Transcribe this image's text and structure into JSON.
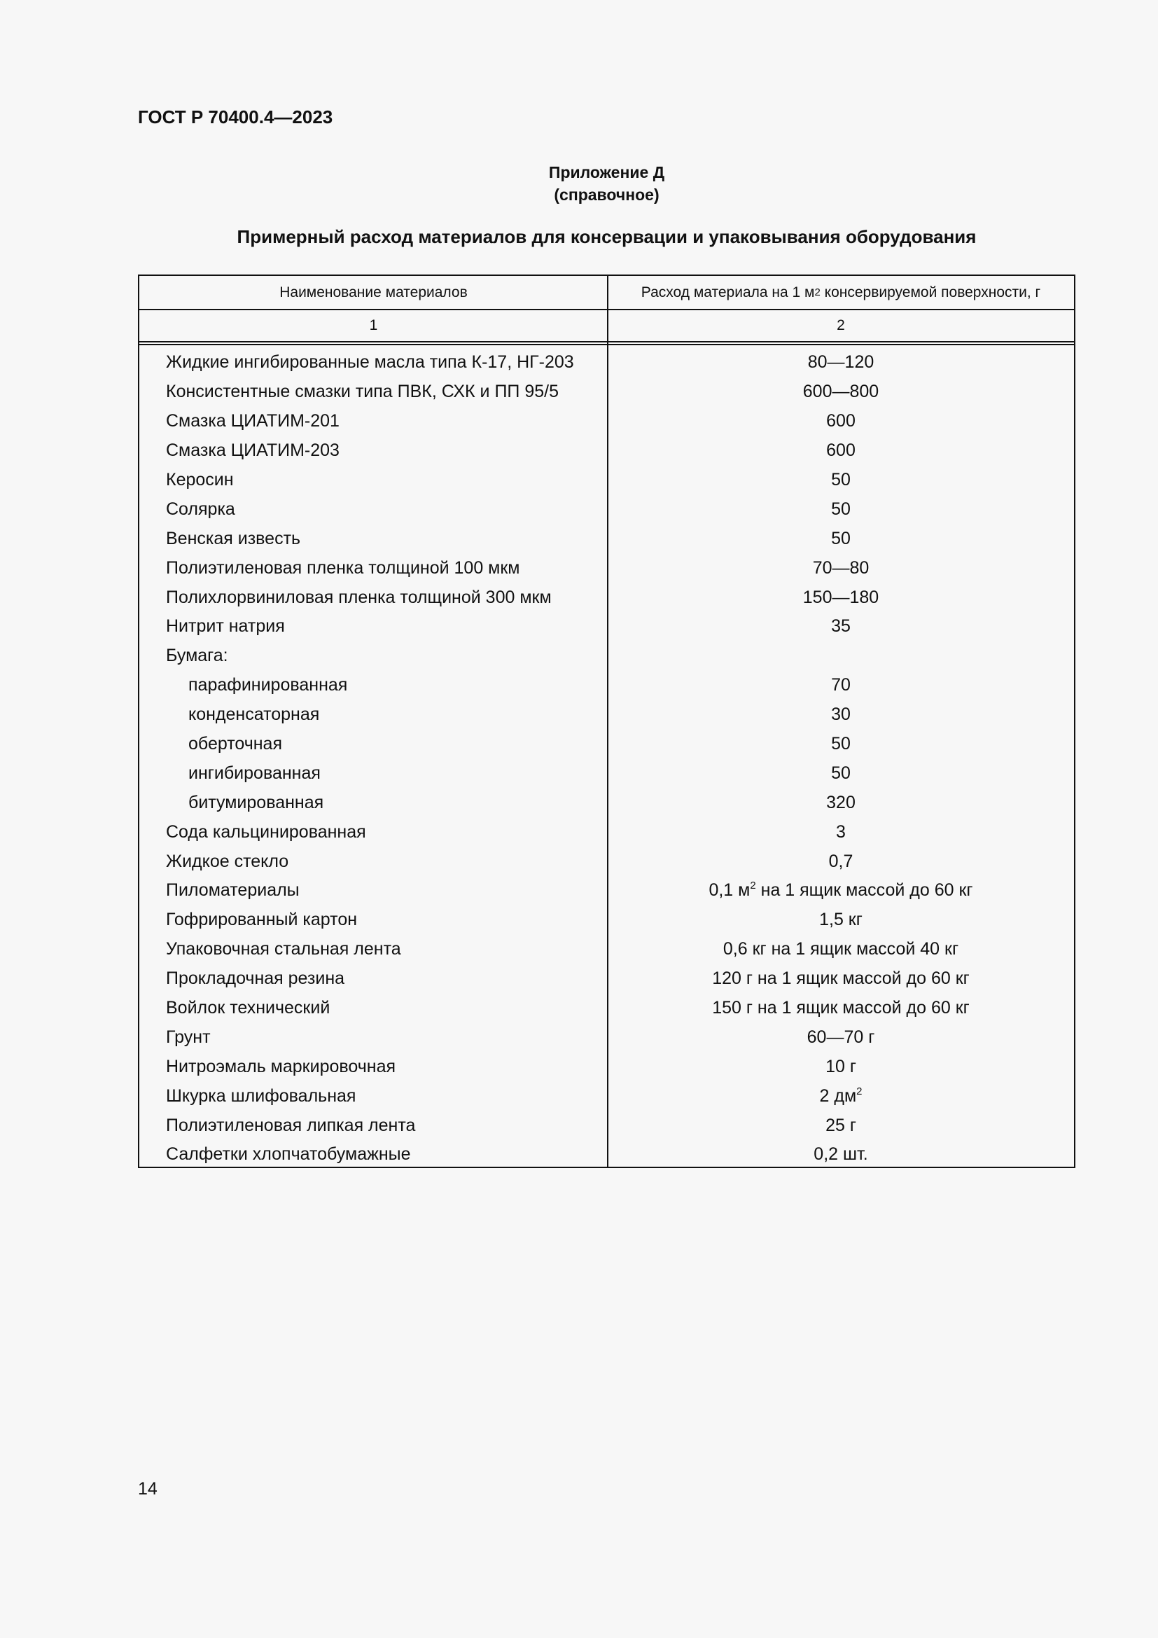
{
  "header": {
    "doc_id": "ГОСТ Р 70400.4—2023"
  },
  "appendix": {
    "label": "Приложение Д",
    "note": "(справочное)"
  },
  "title": "Примерный расход материалов для консервации и упаковывания оборудования",
  "table": {
    "columns": [
      {
        "label": "Наименование материалов",
        "number": "1"
      },
      {
        "label_pre": "Расход материала на 1 м",
        "label_sup": "2",
        "label_post": " консервируемой поверхности, г",
        "number": "2"
      }
    ],
    "rows": [
      {
        "name": "Жидкие ингибированные масла типа К-17, НГ-203",
        "value": "80—120"
      },
      {
        "name": "Консистентные смазки типа ПВК, СХК и ПП 95/5",
        "value": "600—800"
      },
      {
        "name": "Смазка ЦИАТИМ-201",
        "value": "600"
      },
      {
        "name": "Смазка ЦИАТИМ-203",
        "value": "600"
      },
      {
        "name": "Керосин",
        "value": "50"
      },
      {
        "name": "Солярка",
        "value": "50"
      },
      {
        "name": "Венская известь",
        "value": "50"
      },
      {
        "name": "Полиэтиленовая пленка толщиной 100 мкм",
        "value": "70—80"
      },
      {
        "name": "Полихлорвиниловая пленка толщиной 300 мкм",
        "value": "150—180"
      },
      {
        "name": "Нитрит натрия",
        "value": "35"
      },
      {
        "name": "Бумага:",
        "value": ""
      },
      {
        "name": "парафинированная",
        "value": "70",
        "indent": true
      },
      {
        "name": "конденсаторная",
        "value": "30",
        "indent": true
      },
      {
        "name": "оберточная",
        "value": "50",
        "indent": true
      },
      {
        "name": "ингибированная",
        "value": "50",
        "indent": true
      },
      {
        "name": "битумированная",
        "value": "320",
        "indent": true
      },
      {
        "name": "Сода кальцинированная",
        "value": "3"
      },
      {
        "name": "Жидкое стекло",
        "value": "0,7"
      },
      {
        "name": "Пиломатериалы",
        "value": "0,1 м",
        "value_sup": "2",
        "value_post": " на 1 ящик массой до 60 кг"
      },
      {
        "name": "Гофрированный картон",
        "value": "1,5 кг"
      },
      {
        "name": "Упаковочная стальная лента",
        "value": "0,6 кг на 1 ящик массой 40 кг"
      },
      {
        "name": "Прокладочная резина",
        "value": "120 г на 1 ящик массой до 60 кг"
      },
      {
        "name": "Войлок технический",
        "value": "150 г на 1 ящик массой до 60 кг"
      },
      {
        "name": "Грунт",
        "value": "60—70 г"
      },
      {
        "name": "Нитроэмаль маркировочная",
        "value": "10 г"
      },
      {
        "name": "Шкурка шлифовальная",
        "value": "2 дм",
        "value_sup": "2",
        "value_post": ""
      },
      {
        "name": "Полиэтиленовая липкая лента",
        "value": "25 г"
      },
      {
        "name": "Салфетки хлопчатобумажные",
        "value": "0,2 шт."
      }
    ]
  },
  "footer": {
    "page_number": "14"
  }
}
